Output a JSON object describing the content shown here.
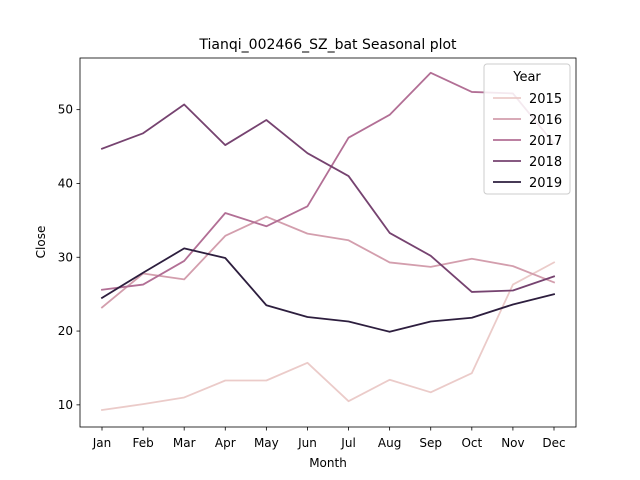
{
  "chart_data": {
    "type": "line",
    "title": "Tianqi_002466_SZ_bat Seasonal plot",
    "xlabel": "Month",
    "ylabel": "Close",
    "categories": [
      "Jan",
      "Feb",
      "Mar",
      "Apr",
      "May",
      "Jun",
      "Jul",
      "Aug",
      "Sep",
      "Oct",
      "Nov",
      "Dec"
    ],
    "ylim": [
      7,
      57
    ],
    "yticks": [
      10,
      20,
      30,
      40,
      50
    ],
    "legend": {
      "title": "Year",
      "position": "upper right"
    },
    "series": [
      {
        "name": "2015",
        "color": "#ebcbc9",
        "values": [
          9.3,
          10.1,
          11.0,
          13.3,
          13.3,
          15.7,
          10.5,
          13.4,
          11.7,
          14.3,
          26.3,
          29.3
        ]
      },
      {
        "name": "2016",
        "color": "#d39ead",
        "values": [
          23.2,
          27.8,
          27.0,
          32.9,
          35.5,
          33.2,
          32.3,
          29.3,
          28.7,
          29.8,
          28.8,
          26.6
        ]
      },
      {
        "name": "2017",
        "color": "#b26f95",
        "values": [
          25.6,
          26.3,
          29.5,
          36.0,
          34.2,
          36.9,
          46.2,
          49.3,
          55.0,
          52.4,
          52.2,
          45.4
        ]
      },
      {
        "name": "2018",
        "color": "#764370",
        "values": [
          44.7,
          46.8,
          50.7,
          45.2,
          48.6,
          44.1,
          41.0,
          33.3,
          30.2,
          25.3,
          25.5,
          27.4
        ]
      },
      {
        "name": "2019",
        "color": "#2d1e3e",
        "values": [
          24.5,
          27.9,
          31.2,
          29.9,
          23.5,
          21.9,
          21.3,
          19.9,
          21.3,
          21.8,
          23.6,
          25.0
        ]
      }
    ]
  }
}
